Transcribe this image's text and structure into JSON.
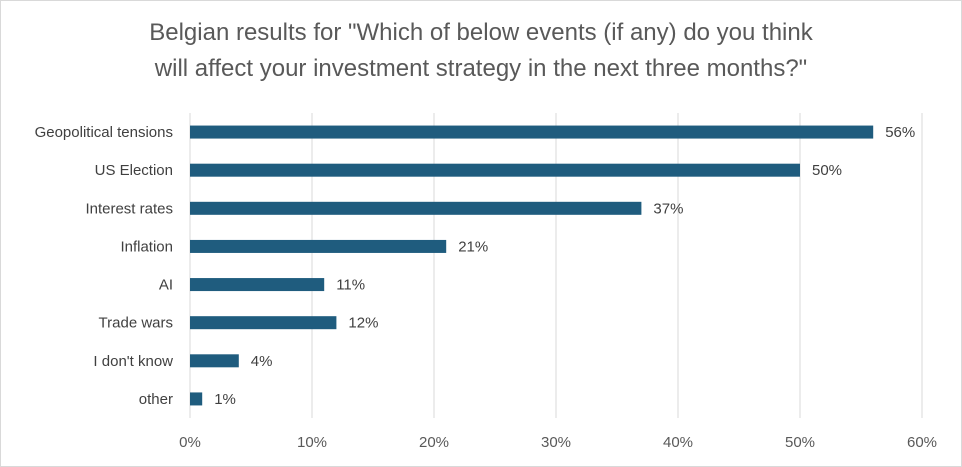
{
  "chart_data": {
    "type": "bar",
    "orientation": "horizontal",
    "title_line1": "Belgian results for \"Which of below events (if any) do you think",
    "title_line2": "will affect your investment strategy in the next three months?\"",
    "categories": [
      "Geopolitical tensions",
      "US Election",
      "Interest rates",
      "Inflation",
      "AI",
      "Trade wars",
      "I don't know",
      "other"
    ],
    "values": [
      56,
      50,
      37,
      21,
      11,
      12,
      4,
      1
    ],
    "value_labels": [
      "56%",
      "50%",
      "37%",
      "21%",
      "11%",
      "12%",
      "4%",
      "1%"
    ],
    "xlim": [
      0,
      60
    ],
    "xticks": [
      0,
      10,
      20,
      30,
      40,
      50,
      60
    ],
    "xtick_labels": [
      "0%",
      "10%",
      "20%",
      "30%",
      "40%",
      "50%",
      "60%"
    ],
    "grid": "vertical",
    "legend": "none",
    "bar_color": "#1F5C7E",
    "grid_color": "#d9d9d9"
  }
}
